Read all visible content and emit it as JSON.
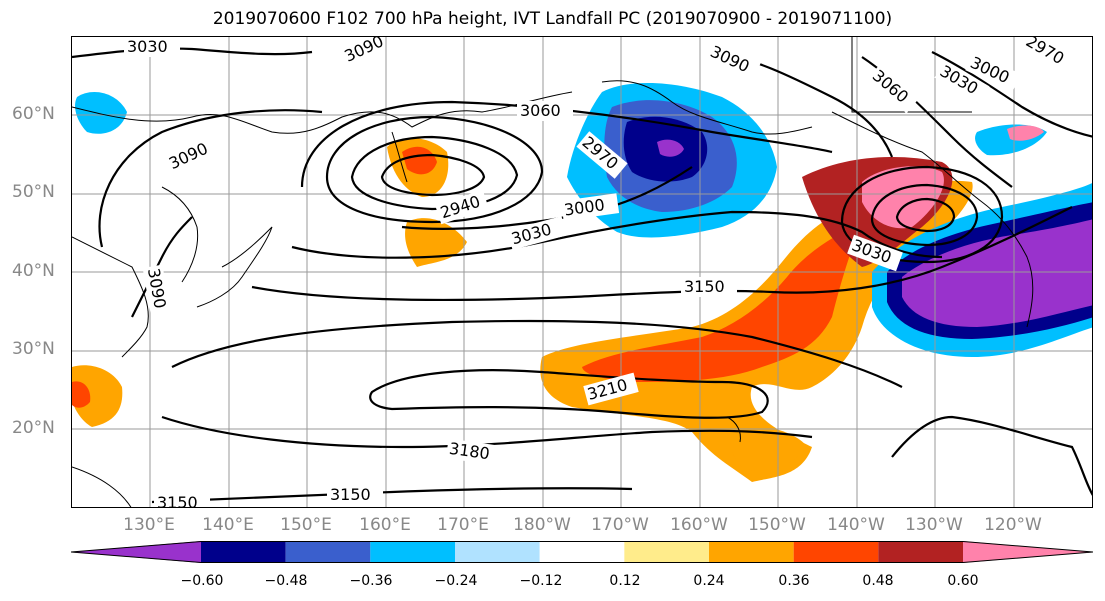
{
  "title": "2019070600 F102 700 hPa height, IVT Landfall PC (2019070900 - 2019071100)",
  "lat_labels": [
    "60°N",
    "50°N",
    "40°N",
    "30°N",
    "20°N"
  ],
  "lon_labels": [
    "130°E",
    "140°E",
    "150°E",
    "160°E",
    "170°E",
    "180°W",
    "170°W",
    "160°W",
    "150°W",
    "140°W",
    "130°W",
    "120°W"
  ],
  "contour_labels": [
    "3030",
    "3090",
    "3060",
    "2970",
    "2940",
    "3000",
    "3030",
    "3150",
    "3030",
    "3090",
    "3060",
    "3030",
    "2970",
    "3090",
    "3000",
    "3210",
    "3180",
    "3150",
    "3150",
    "3090"
  ],
  "colorbar": {
    "colors": [
      "#9932CC",
      "#00008B",
      "#3A5FCD",
      "#00BFFF",
      "#B0E2FF",
      "#FFFFFF",
      "#FFEC8B",
      "#FFA500",
      "#FF4500",
      "#B22222",
      "#FF82AB"
    ],
    "tick_labels": [
      "−0.60",
      "−0.48",
      "−0.36",
      "−0.24",
      "−0.12",
      "0.12",
      "0.24",
      "0.36",
      "0.48",
      "0.60"
    ]
  }
}
